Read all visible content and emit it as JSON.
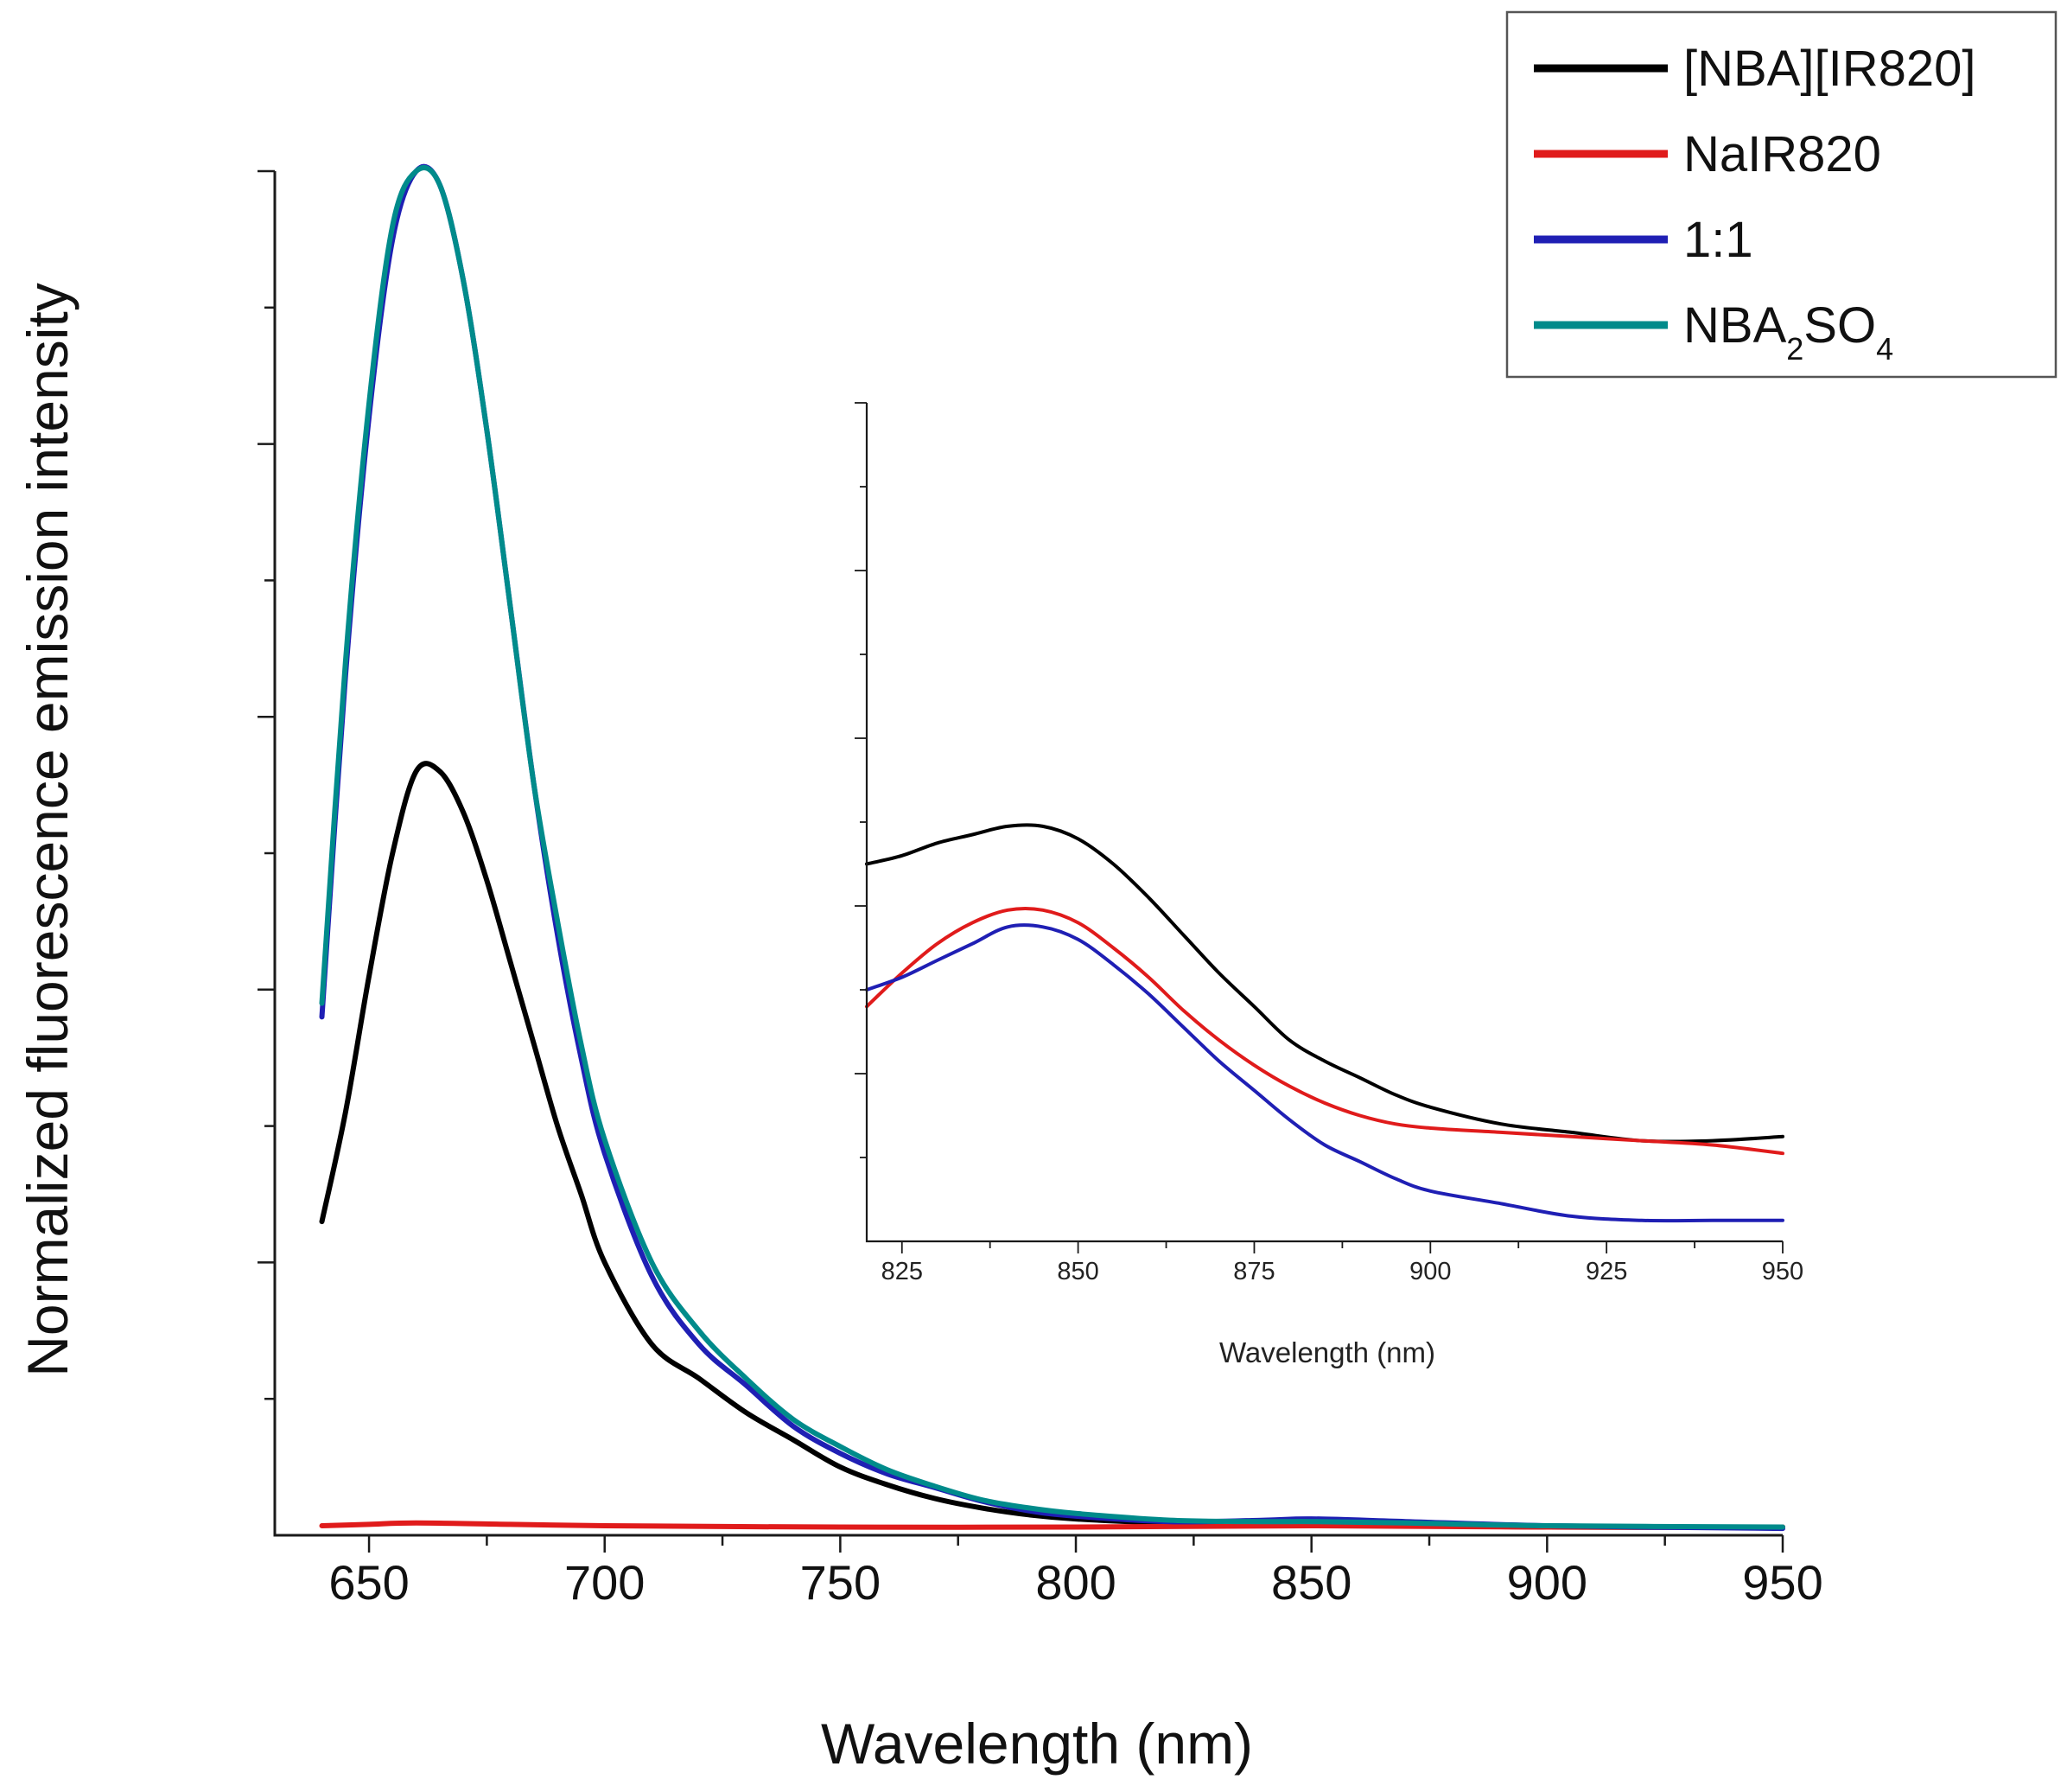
{
  "chart_data": [
    {
      "type": "line",
      "name": "main",
      "title": "",
      "xlabel": "Wavelength (nm)",
      "ylabel": "Normalized fluorescence emission intensity",
      "xlim": [
        630,
        950
      ],
      "ylim": [
        0,
        1
      ],
      "xticks": [
        650,
        700,
        750,
        800,
        850,
        900,
        950
      ],
      "yticks_count": 10,
      "ytick_labels_shown": false,
      "grid": false,
      "legend": {
        "position": "top-right",
        "entries": [
          {
            "label": "[NBA][IR820]",
            "color": "#000000"
          },
          {
            "label": "NaIR820",
            "color": "#e01b1b"
          },
          {
            "label": "1:1",
            "color": "#1f1fb4"
          },
          {
            "label": "NBA",
            "sub1": "2",
            "mid": "SO",
            "sub2": "4",
            "color": "#008b8b"
          }
        ]
      },
      "series": [
        {
          "name": "[NBA][IR820]",
          "color": "#000000",
          "x": [
            640,
            645,
            650,
            655,
            660,
            665,
            670,
            675,
            680,
            685,
            690,
            695,
            700,
            710,
            720,
            730,
            740,
            750,
            760,
            770,
            780,
            790,
            800,
            820,
            850,
            900,
            950
          ],
          "y": [
            0.23,
            0.31,
            0.41,
            0.5,
            0.56,
            0.56,
            0.53,
            0.48,
            0.42,
            0.36,
            0.3,
            0.25,
            0.2,
            0.14,
            0.115,
            0.09,
            0.07,
            0.05,
            0.037,
            0.027,
            0.02,
            0.015,
            0.012,
            0.009,
            0.008,
            0.006,
            0.006
          ]
        },
        {
          "name": "NaIR820",
          "color": "#e01b1b",
          "x": [
            640,
            650,
            660,
            680,
            700,
            750,
            800,
            850,
            900,
            950
          ],
          "y": [
            0.007,
            0.008,
            0.009,
            0.008,
            0.007,
            0.006,
            0.006,
            0.007,
            0.006,
            0.006
          ]
        },
        {
          "name": "1:1",
          "color": "#1f1fb4",
          "x": [
            640,
            645,
            650,
            655,
            660,
            665,
            670,
            675,
            680,
            685,
            690,
            695,
            700,
            710,
            720,
            730,
            740,
            750,
            760,
            770,
            780,
            790,
            800,
            820,
            840,
            850,
            870,
            900,
            950
          ],
          "y": [
            0.38,
            0.63,
            0.82,
            0.95,
            1.0,
            0.99,
            0.92,
            0.81,
            0.68,
            0.55,
            0.44,
            0.35,
            0.28,
            0.19,
            0.14,
            0.11,
            0.08,
            0.06,
            0.045,
            0.035,
            0.025,
            0.018,
            0.014,
            0.01,
            0.011,
            0.012,
            0.01,
            0.007,
            0.005
          ]
        },
        {
          "name": "NBA2SO4",
          "color": "#008b8b",
          "x": [
            640,
            645,
            650,
            655,
            660,
            665,
            670,
            675,
            680,
            685,
            690,
            695,
            700,
            710,
            720,
            730,
            740,
            750,
            760,
            770,
            780,
            790,
            800,
            820,
            840,
            850,
            870,
            900,
            950
          ],
          "y": [
            0.39,
            0.64,
            0.83,
            0.96,
            1.0,
            0.99,
            0.92,
            0.81,
            0.68,
            0.55,
            0.45,
            0.36,
            0.29,
            0.2,
            0.15,
            0.115,
            0.085,
            0.065,
            0.048,
            0.036,
            0.026,
            0.02,
            0.016,
            0.011,
            0.01,
            0.01,
            0.009,
            0.007,
            0.006
          ]
        }
      ]
    },
    {
      "type": "line",
      "name": "inset",
      "title": "",
      "xlabel": "Wavelength (nm)",
      "ylabel": "",
      "xlim": [
        820,
        950
      ],
      "ylim": [
        0,
        10
      ],
      "xticks": [
        825,
        850,
        875,
        900,
        925,
        950
      ],
      "yticks_count": 10,
      "ytick_labels_shown": false,
      "grid": false,
      "series": [
        {
          "name": "[NBA][IR820]",
          "color": "#000000",
          "x": [
            820,
            825,
            830,
            835,
            840,
            845,
            850,
            855,
            860,
            865,
            870,
            875,
            880,
            885,
            890,
            895,
            900,
            910,
            920,
            930,
            940,
            950
          ],
          "y": [
            4.5,
            4.6,
            4.75,
            4.85,
            4.95,
            4.95,
            4.8,
            4.5,
            4.1,
            3.65,
            3.2,
            2.8,
            2.4,
            2.15,
            1.95,
            1.75,
            1.6,
            1.4,
            1.3,
            1.2,
            1.2,
            1.25
          ]
        },
        {
          "name": "NaIR820",
          "color": "#e01b1b",
          "x": [
            820,
            825,
            830,
            835,
            840,
            845,
            850,
            855,
            860,
            865,
            870,
            875,
            880,
            885,
            890,
            895,
            900,
            910,
            920,
            930,
            940,
            950
          ],
          "y": [
            2.8,
            3.2,
            3.55,
            3.8,
            3.95,
            3.95,
            3.8,
            3.5,
            3.15,
            2.75,
            2.4,
            2.1,
            1.85,
            1.65,
            1.5,
            1.4,
            1.35,
            1.3,
            1.25,
            1.2,
            1.15,
            1.05
          ]
        },
        {
          "name": "1:1",
          "color": "#1f1fb4",
          "x": [
            820,
            825,
            830,
            835,
            840,
            845,
            850,
            855,
            860,
            865,
            870,
            875,
            880,
            885,
            890,
            895,
            900,
            910,
            920,
            930,
            940,
            950
          ],
          "y": [
            3.0,
            3.15,
            3.35,
            3.55,
            3.75,
            3.75,
            3.6,
            3.3,
            2.95,
            2.55,
            2.15,
            1.8,
            1.45,
            1.15,
            0.95,
            0.75,
            0.6,
            0.45,
            0.3,
            0.25,
            0.25,
            0.25
          ]
        }
      ]
    }
  ]
}
